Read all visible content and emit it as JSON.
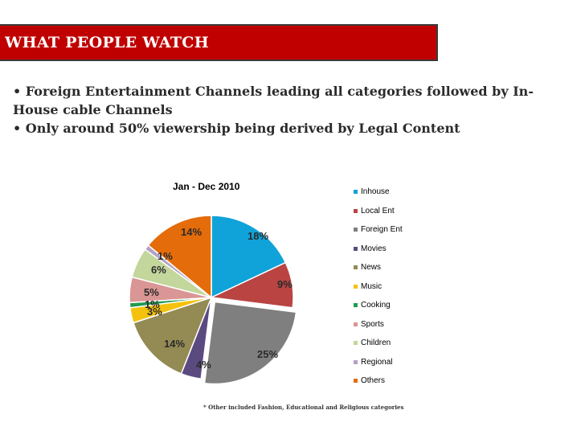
{
  "header": {
    "title": "WHAT PEOPLE WATCH",
    "bar_color": "#c00000"
  },
  "bullets": [
    "• Foreign Entertainment Channels leading all categories followed by In-House cable Channels",
    "• Only around 50% viewership being derived by Legal Content"
  ],
  "chart_data": {
    "type": "pie",
    "title": "Jan - Dec 2010",
    "legend_position": "right",
    "slices": [
      {
        "name": "Inhouse",
        "value": 18,
        "label": "18%",
        "color": "#0fa3d9"
      },
      {
        "name": "Local Ent",
        "value": 9,
        "label": "9%",
        "color": "#b94442"
      },
      {
        "name": "Foreign Ent",
        "value": 25,
        "label": "25%",
        "color": "#7f7f7f",
        "exploded": true
      },
      {
        "name": "Movies",
        "value": 4,
        "label": "4%",
        "color": "#5b4a80"
      },
      {
        "name": "News",
        "value": 14,
        "label": "14%",
        "color": "#948a54"
      },
      {
        "name": "Music",
        "value": 3,
        "label": "3%",
        "color": "#f4c20d"
      },
      {
        "name": "Cooking",
        "value": 1,
        "label": "1%",
        "color": "#1e9b50"
      },
      {
        "name": "Sports",
        "value": 5,
        "label": "5%",
        "color": "#d99694"
      },
      {
        "name": "Children",
        "value": 6,
        "label": "6%",
        "color": "#c3d69b"
      },
      {
        "name": "Regional",
        "value": 1,
        "label": "1%",
        "color": "#b3a2c7"
      },
      {
        "name": "Others",
        "value": 14,
        "label": "14%",
        "color": "#e46c0a"
      }
    ]
  },
  "footnote": "* Other included Fashion, Educational and Religious categories"
}
